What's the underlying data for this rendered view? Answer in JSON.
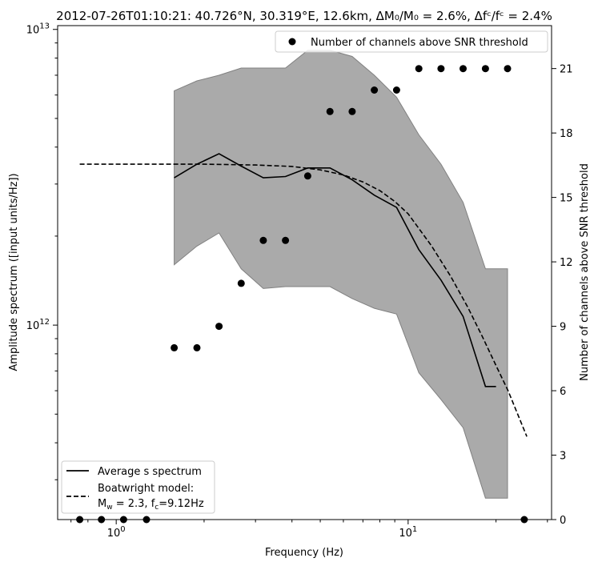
{
  "chart_data": {
    "type": "line",
    "title": "2012-07-26T01:10:21: 40.726°N, 30.319°E, 12.6km, ΔM₀/M₀ = 2.6%, Δfᶜ/fᶜ = 2.4%",
    "xlabel": "Frequency (Hz)",
    "ylabel": "Amplitude spectrum ([input units/Hz])",
    "y2label": "Number of channels above SNR threshold",
    "xscale": "log",
    "yscale": "log",
    "xlim": [
      0.63,
      31
    ],
    "ylim": [
      220000000000.0,
      10300000000000.0
    ],
    "y2lim": [
      0,
      23
    ],
    "x_ticks": [
      {
        "value": 1,
        "base": "10",
        "exp": "0"
      },
      {
        "value": 10,
        "base": "10",
        "exp": "1"
      }
    ],
    "y_ticks": [
      {
        "value": 1000000000000.0,
        "base": "10",
        "exp": "12"
      },
      {
        "value": 10000000000000.0,
        "base": "10",
        "exp": "13"
      }
    ],
    "y2_ticks": [
      "0",
      "3",
      "6",
      "9",
      "12",
      "15",
      "18",
      "21"
    ],
    "band": {
      "x": [
        1.58,
        1.89,
        2.25,
        2.68,
        3.19,
        3.8,
        4.53,
        5.4,
        6.43,
        7.66,
        9.13,
        10.88,
        12.96,
        15.43,
        18.4,
        21.9
      ],
      "upper": [
        6200000000000.0,
        6700000000000.0,
        7000000000000.0,
        7400000000000.0,
        7400000000000.0,
        7400000000000.0,
        8500000000000.0,
        8500000000000.0,
        8100000000000.0,
        7000000000000.0,
        5900000000000.0,
        4400000000000.0,
        3500000000000.0,
        2600000000000.0,
        1550000000000.0,
        1550000000000.0
      ],
      "lower": [
        1600000000000.0,
        1850000000000.0,
        2050000000000.0,
        1550000000000.0,
        1330000000000.0,
        1350000000000.0,
        1350000000000.0,
        1350000000000.0,
        1230000000000.0,
        1140000000000.0,
        1090000000000.0,
        690000000000.0,
        560000000000.0,
        450000000000.0,
        260000000000.0,
        260000000000.0
      ]
    },
    "series": [
      {
        "name": "Average s spectrum",
        "style": "solid",
        "x": [
          1.58,
          1.89,
          2.25,
          2.68,
          3.19,
          3.8,
          4.53,
          5.4,
          6.43,
          7.66,
          9.13,
          10.88,
          12.96,
          15.43,
          18.4,
          20.0
        ],
        "y": [
          3150000000000.0,
          3500000000000.0,
          3800000000000.0,
          3450000000000.0,
          3150000000000.0,
          3180000000000.0,
          3400000000000.0,
          3400000000000.0,
          3100000000000.0,
          2750000000000.0,
          2500000000000.0,
          1800000000000.0,
          1420000000000.0,
          1070000000000.0,
          620000000000.0,
          620000000000.0
        ]
      },
      {
        "name": "Boatwright model:",
        "name_line2": "M_w = 2.3, f_c=9.12Hz",
        "style": "dashed",
        "x": [
          0.75,
          1.0,
          1.5,
          2.0,
          3.0,
          4.0,
          5.0,
          6.0,
          7.0,
          8.0,
          9.0,
          10.0,
          12.0,
          14.0,
          16.0,
          18.0,
          20.0,
          22.0,
          25.5
        ],
        "y": [
          3500000000000.0,
          3500000000000.0,
          3500000000000.0,
          3500000000000.0,
          3480000000000.0,
          3440000000000.0,
          3350000000000.0,
          3220000000000.0,
          3050000000000.0,
          2850000000000.0,
          2620000000000.0,
          2380000000000.0,
          1860000000000.0,
          1460000000000.0,
          1150000000000.0,
          910000000000.0,
          730000000000.0,
          600000000000.0,
          420000000000.0
        ]
      }
    ],
    "scatter": {
      "name": "Number of channels above SNR threshold",
      "axis": "right",
      "x": [
        0.75,
        0.89,
        1.06,
        1.27,
        1.58,
        1.89,
        2.25,
        2.68,
        3.19,
        3.8,
        4.53,
        5.4,
        6.43,
        7.66,
        9.13,
        10.88,
        12.96,
        15.43,
        18.4,
        21.9,
        25.0
      ],
      "y": [
        0,
        0,
        0,
        0,
        8,
        8,
        9,
        11,
        13,
        13,
        16,
        19,
        19,
        20,
        20,
        21,
        21,
        21,
        21,
        21,
        0
      ]
    },
    "legend_upper": "top-right",
    "legend_lower": "bottom-left",
    "grid": false,
    "colors": {
      "band": "#aaaaaa",
      "band_edge": "#808080",
      "line": "#000000"
    }
  }
}
